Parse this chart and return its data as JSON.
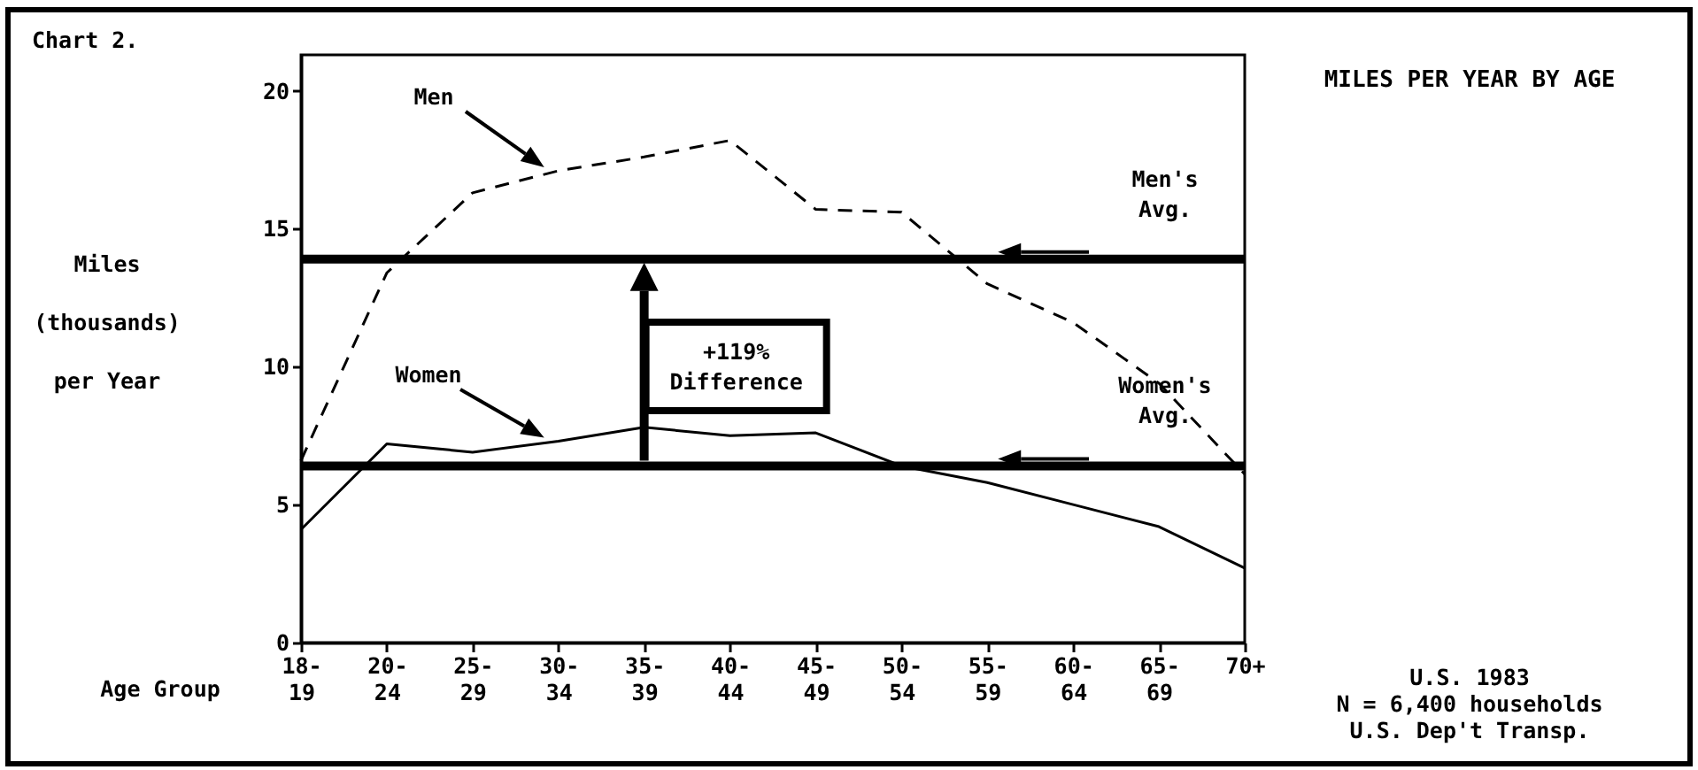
{
  "chart_data": {
    "type": "line",
    "title": "MILES PER YEAR BY AGE",
    "xlabel": "Age Group",
    "ylabel": "Miles\n(thousands)\nper Year",
    "categories": [
      "18-19",
      "20-24",
      "25-29",
      "30-34",
      "35-39",
      "40-44",
      "45-49",
      "50-54",
      "55-59",
      "60-64",
      "65-69",
      "70+"
    ],
    "series": [
      {
        "name": "Men",
        "color": "#000000",
        "line_style": "dashed",
        "values": [
          6.6,
          13.4,
          16.3,
          17.1,
          17.6,
          18.2,
          15.7,
          15.6,
          13.0,
          11.6,
          9.4,
          6.1
        ]
      },
      {
        "name": "Women",
        "color": "#000000",
        "line_style": "solid",
        "values": [
          4.1,
          7.2,
          6.9,
          7.3,
          7.8,
          7.5,
          7.6,
          6.4,
          5.8,
          5.0,
          4.2,
          2.7
        ]
      }
    ],
    "ylim": [
      0,
      21.3
    ],
    "yticks": [
      0,
      5,
      10,
      15,
      20
    ],
    "ref_lines": [
      {
        "axis": "y",
        "value": 13.9,
        "label": "Men's Avg.",
        "color": "#000000"
      },
      {
        "axis": "y",
        "value": 6.4,
        "label": "Women's Avg.",
        "color": "#000000"
      }
    ],
    "annotations": [
      "Chart 2.",
      "+119% Difference",
      "U.S. 1983",
      "N = 6,400 households",
      "U.S. Dep't Transp."
    ],
    "grid": false,
    "marker": "none"
  }
}
